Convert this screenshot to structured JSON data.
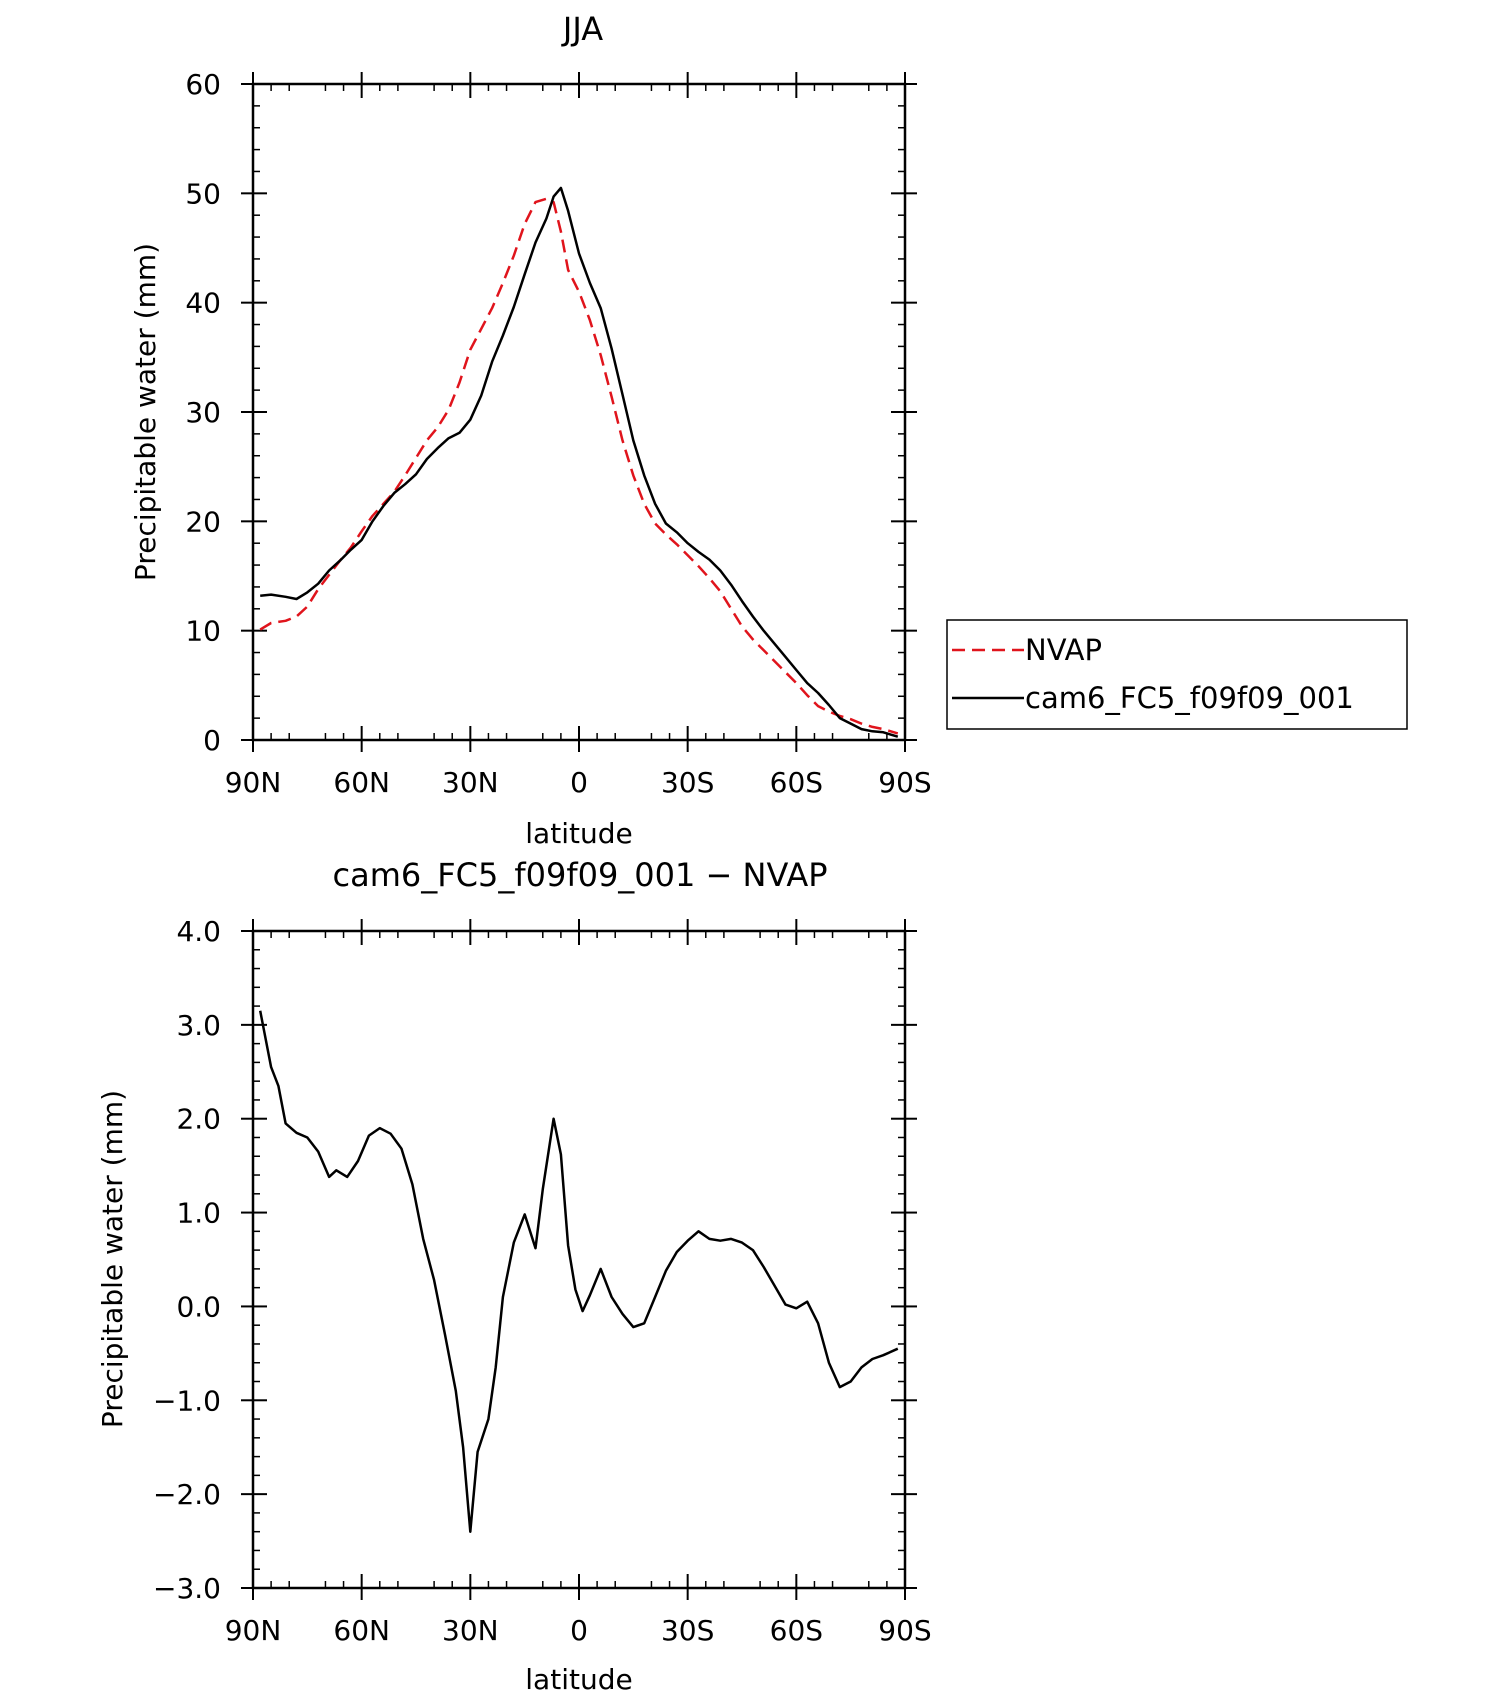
{
  "chart_data": [
    {
      "type": "line",
      "title": "JJA",
      "xlabel": "latitude",
      "ylabel": "Precipitable water (mm)",
      "xlim": [
        90,
        -90
      ],
      "ylim": [
        0,
        60
      ],
      "xticks": [
        {
          "value": 90,
          "label": "90N"
        },
        {
          "value": 60,
          "label": "60N"
        },
        {
          "value": 30,
          "label": "30N"
        },
        {
          "value": 0,
          "label": "0"
        },
        {
          "value": -30,
          "label": "30S"
        },
        {
          "value": -60,
          "label": "60S"
        },
        {
          "value": -90,
          "label": "90S"
        }
      ],
      "yticks": [
        {
          "value": 0,
          "label": "0"
        },
        {
          "value": 10,
          "label": "10"
        },
        {
          "value": 20,
          "label": "20"
        },
        {
          "value": 30,
          "label": "30"
        },
        {
          "value": 40,
          "label": "40"
        },
        {
          "value": 50,
          "label": "50"
        },
        {
          "value": 60,
          "label": "60"
        }
      ],
      "legend": "right",
      "series": [
        {
          "name": "NVAP",
          "color": "#e0141c",
          "dash": "dashed",
          "x": [
            88,
            85,
            81,
            78,
            75,
            72,
            69,
            66,
            63,
            60,
            57,
            54,
            51,
            48,
            45,
            42,
            39,
            36,
            33,
            30,
            27,
            24,
            21,
            18,
            15,
            12,
            9,
            7,
            5,
            3,
            0,
            -3,
            -6,
            -9,
            -12,
            -15,
            -18,
            -21,
            -24,
            -27,
            -30,
            -33,
            -36,
            -39,
            -42,
            -45,
            -48,
            -51,
            -54,
            -57,
            -60,
            -63,
            -66,
            -69,
            -72,
            -75,
            -78,
            -81,
            -84,
            -88
          ],
          "values": [
            10.1,
            10.7,
            10.9,
            11.3,
            12.2,
            13.8,
            15.1,
            16.4,
            17.6,
            19.1,
            20.5,
            21.6,
            22.7,
            24.2,
            25.8,
            27.4,
            28.6,
            30.2,
            32.7,
            35.7,
            37.6,
            39.5,
            41.8,
            44.3,
            47.2,
            49.2,
            49.5,
            49.2,
            46.5,
            43.0,
            41.0,
            38.4,
            35.2,
            31.4,
            27.4,
            24.2,
            21.6,
            19.8,
            18.8,
            17.9,
            16.9,
            15.9,
            14.8,
            13.6,
            12.0,
            10.4,
            9.2,
            8.2,
            7.2,
            6.2,
            5.2,
            4.1,
            3.1,
            2.6,
            2.2,
            1.9,
            1.5,
            1.2,
            1.0,
            0.6
          ]
        },
        {
          "name": "cam6_FC5_f09f09_001",
          "color": "#000000",
          "dash": "solid",
          "x": [
            88,
            85,
            81,
            78,
            75,
            72,
            69,
            66,
            63,
            60,
            57,
            54,
            51,
            48,
            45,
            42,
            39,
            36,
            33,
            30,
            27,
            24,
            21,
            18,
            15,
            12,
            9,
            7,
            5,
            3,
            0,
            -3,
            -6,
            -9,
            -12,
            -15,
            -18,
            -21,
            -24,
            -27,
            -30,
            -33,
            -36,
            -39,
            -42,
            -45,
            -48,
            -51,
            -54,
            -57,
            -60,
            -63,
            -66,
            -69,
            -72,
            -75,
            -78,
            -81,
            -84,
            -88
          ],
          "values": [
            13.2,
            13.3,
            13.1,
            12.9,
            13.5,
            14.3,
            15.5,
            16.4,
            17.4,
            18.3,
            20.0,
            21.4,
            22.6,
            23.4,
            24.3,
            25.7,
            26.7,
            27.6,
            28.1,
            29.3,
            31.5,
            34.6,
            37.0,
            39.6,
            42.6,
            45.5,
            47.7,
            49.7,
            50.5,
            48.4,
            44.5,
            41.8,
            39.5,
            35.8,
            31.6,
            27.4,
            24.2,
            21.6,
            19.8,
            19.0,
            18.0,
            17.2,
            16.5,
            15.5,
            14.2,
            12.7,
            11.3,
            10.0,
            8.8,
            7.6,
            6.4,
            5.2,
            4.3,
            3.2,
            2.0,
            1.5,
            1.0,
            0.8,
            0.7,
            0.3
          ]
        }
      ]
    },
    {
      "type": "line",
      "title": "cam6_FC5_f09f09_001 − NVAP",
      "xlabel": "latitude",
      "ylabel": "Precipitable water (mm)",
      "xlim": [
        90,
        -90
      ],
      "ylim": [
        -3.0,
        4.0
      ],
      "xticks": [
        {
          "value": 90,
          "label": "90N"
        },
        {
          "value": 60,
          "label": "60N"
        },
        {
          "value": 30,
          "label": "30N"
        },
        {
          "value": 0,
          "label": "0"
        },
        {
          "value": -30,
          "label": "30S"
        },
        {
          "value": -60,
          "label": "60S"
        },
        {
          "value": -90,
          "label": "90S"
        }
      ],
      "yticks": [
        {
          "value": -3.0,
          "label": "−3.0"
        },
        {
          "value": -2.0,
          "label": "−2.0"
        },
        {
          "value": -1.0,
          "label": "−1.0"
        },
        {
          "value": 0.0,
          "label": "0.0"
        },
        {
          "value": 1.0,
          "label": "1.0"
        },
        {
          "value": 2.0,
          "label": "2.0"
        },
        {
          "value": 3.0,
          "label": "3.0"
        },
        {
          "value": 4.0,
          "label": "4.0"
        }
      ],
      "series": [
        {
          "color": "#000000",
          "dash": "solid",
          "x": [
            88,
            85,
            83,
            81,
            78,
            75,
            72,
            69,
            67,
            64,
            61,
            58,
            55,
            52,
            49,
            46,
            43,
            40,
            37,
            34,
            32,
            30,
            28,
            25,
            23,
            21,
            18,
            15,
            12,
            10,
            7,
            5,
            3,
            1,
            -1,
            -3,
            -6,
            -9,
            -12,
            -15,
            -18,
            -21,
            -24,
            -27,
            -30,
            -33,
            -36,
            -39,
            -42,
            -45,
            -48,
            -51,
            -54,
            -57,
            -60,
            -63,
            -66,
            -69,
            -72,
            -75,
            -78,
            -81,
            -84,
            -88
          ],
          "values": [
            3.15,
            2.55,
            2.35,
            1.95,
            1.85,
            1.8,
            1.65,
            1.38,
            1.45,
            1.38,
            1.55,
            1.82,
            1.9,
            1.84,
            1.68,
            1.3,
            0.72,
            0.28,
            -0.3,
            -0.9,
            -1.5,
            -2.4,
            -1.55,
            -1.2,
            -0.65,
            0.1,
            0.68,
            0.98,
            0.62,
            1.25,
            2.0,
            1.62,
            0.65,
            0.18,
            -0.05,
            0.12,
            0.4,
            0.1,
            -0.08,
            -0.22,
            -0.18,
            0.1,
            0.38,
            0.58,
            0.7,
            0.8,
            0.72,
            0.7,
            0.72,
            0.68,
            0.6,
            0.42,
            0.22,
            0.02,
            -0.02,
            0.05,
            -0.18,
            -0.6,
            -0.86,
            -0.8,
            -0.65,
            -0.56,
            -0.52,
            -0.45
          ]
        }
      ]
    }
  ]
}
